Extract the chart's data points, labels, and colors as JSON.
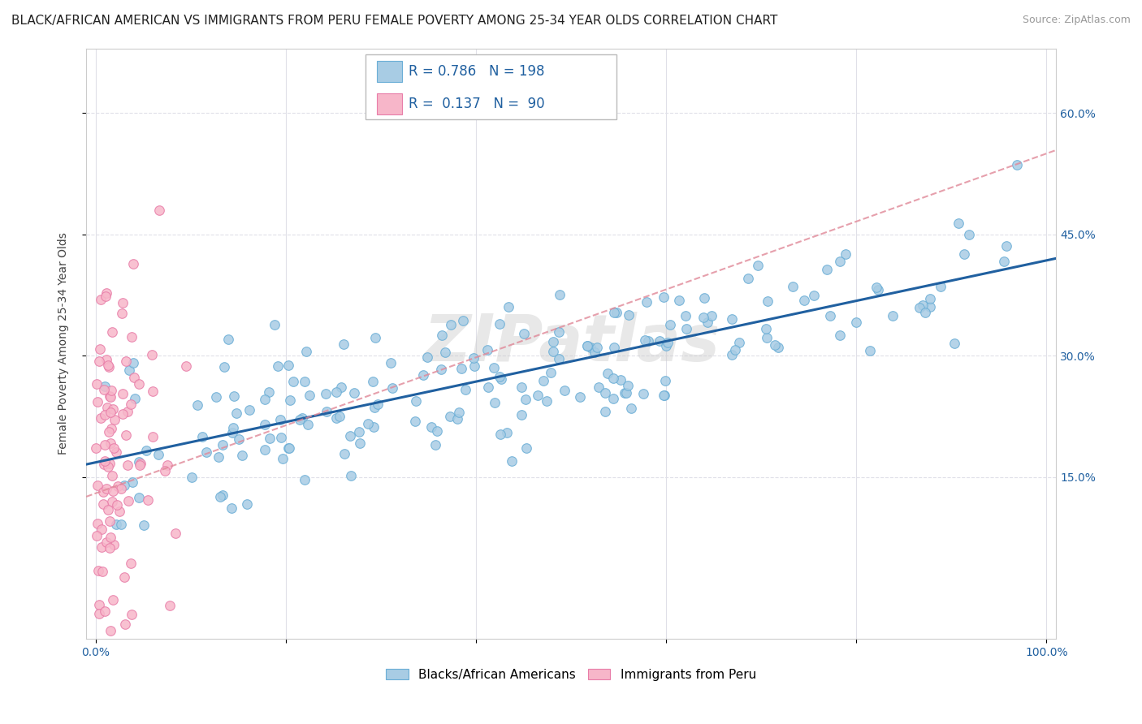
{
  "title": "BLACK/AFRICAN AMERICAN VS IMMIGRANTS FROM PERU FEMALE POVERTY AMONG 25-34 YEAR OLDS CORRELATION CHART",
  "source": "Source: ZipAtlas.com",
  "ylabel": "Female Poverty Among 25-34 Year Olds",
  "watermark": "ZIPatlas",
  "xlim": [
    -0.01,
    1.01
  ],
  "ylim": [
    -0.05,
    0.68
  ],
  "xticks": [
    0.0,
    0.2,
    0.4,
    0.6,
    0.8,
    1.0
  ],
  "xticklabels": [
    "0.0%",
    "",
    "",
    "",
    "",
    "100.0%"
  ],
  "yticks": [
    0.15,
    0.3,
    0.45,
    0.6
  ],
  "yticklabels": [
    "15.0%",
    "30.0%",
    "45.0%",
    "60.0%"
  ],
  "legend_r1": "R = 0.786",
  "legend_n1": "N = 198",
  "legend_r2": "R =  0.137",
  "legend_n2": "N =  90",
  "blue_color": "#a8cce4",
  "blue_edge_color": "#6aaed6",
  "pink_color": "#f7b6c9",
  "pink_edge_color": "#e87da8",
  "blue_line_color": "#2060a0",
  "pink_line_color": "#e06080",
  "pink_dash_color": "#e08898",
  "R_blue": 0.786,
  "N_blue": 198,
  "R_pink": 0.137,
  "N_pink": 90,
  "background_color": "#ffffff",
  "grid_color": "#e0e0e8",
  "title_fontsize": 11,
  "axis_label_fontsize": 10,
  "tick_fontsize": 10,
  "legend_fontsize": 12
}
